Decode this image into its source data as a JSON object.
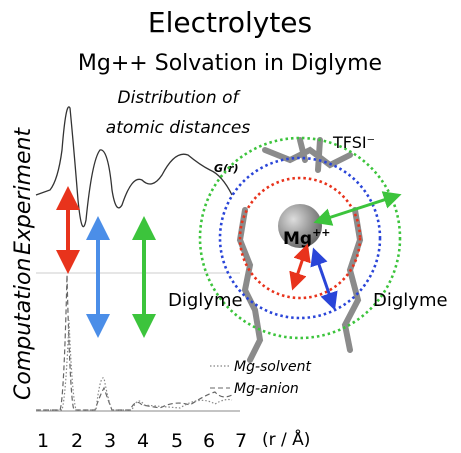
{
  "title": "Electrolytes",
  "subtitle": "Mg++ Solvation in Diglyme",
  "annotation": [
    "Distribution of",
    "atomic distances"
  ],
  "y_labels": [
    "Computation",
    "Experiment"
  ],
  "curve_label": "G(r)",
  "x_ticks": [
    "1",
    "2",
    "3",
    "4",
    "5",
    "6",
    "7"
  ],
  "x_label": "(r / Å)",
  "legend": [
    "Mg-solvent",
    "Mg-anion"
  ],
  "molecule_labels": {
    "center": "Mg",
    "center_charge": "++",
    "anion": "TFSI⁻",
    "left": "Diglyme",
    "right": "Diglyme"
  }
}
